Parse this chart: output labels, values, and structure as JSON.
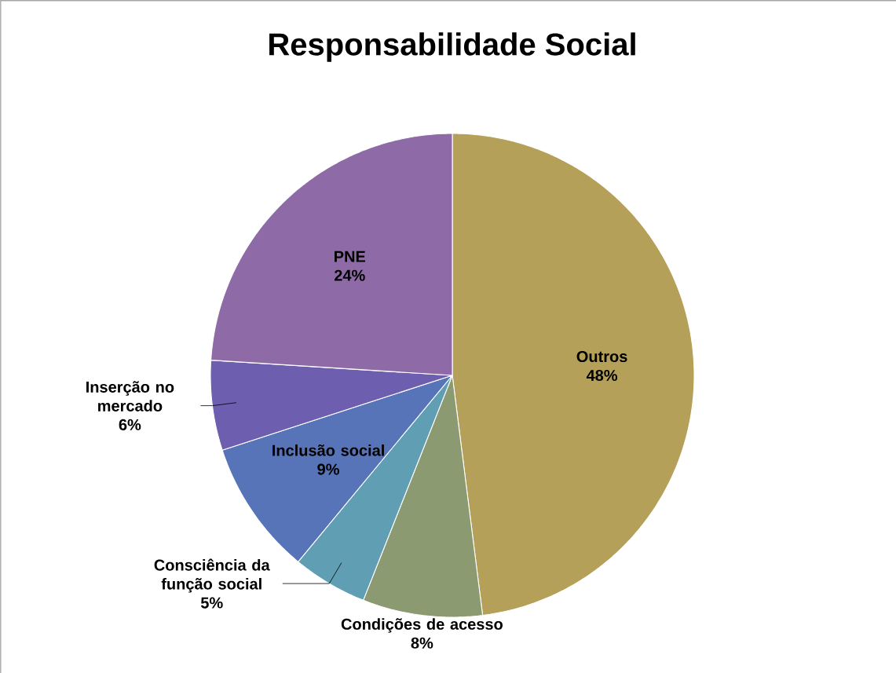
{
  "chart_data": {
    "type": "pie",
    "title": "Responsabilidade Social",
    "categories": [
      "Outros",
      "Condições de acesso",
      "Consciência da função social",
      "Inclusão social",
      "Inserção no mercado",
      "PNE"
    ],
    "values": [
      48,
      8,
      5,
      9,
      6,
      24
    ],
    "colors": [
      "#b5a05a",
      "#8c9a72",
      "#5f9eb3",
      "#5874b8",
      "#6d5eb0",
      "#8e6ba6"
    ],
    "value_labels": [
      "48%",
      "8%",
      "5%",
      "9%",
      "6%",
      "24%"
    ]
  }
}
